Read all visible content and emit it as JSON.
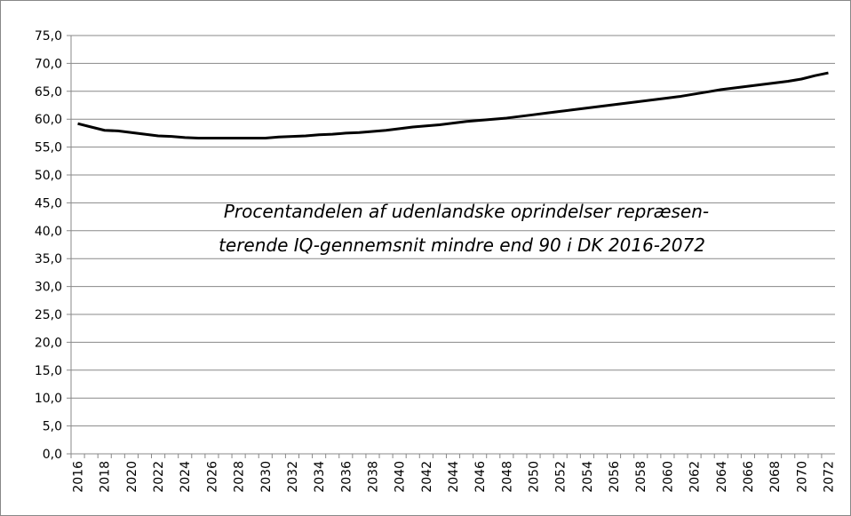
{
  "chart_data": {
    "type": "line",
    "annotation": [
      "Procentandelen af udenlandske oprindelser repræsen-",
      "terende IQ-gennemsnit mindre end 90 i DK 2016-2072"
    ],
    "categories": [
      "2016",
      null,
      "2018",
      null,
      "2020",
      null,
      "2022",
      null,
      "2024",
      null,
      "2026",
      null,
      "2028",
      null,
      "2030",
      null,
      "2032",
      null,
      "2034",
      null,
      "2036",
      null,
      "2038",
      null,
      "2040",
      null,
      "2042",
      null,
      "2044",
      null,
      "2046",
      null,
      "2048",
      null,
      "2050",
      null,
      "2052",
      null,
      "2054",
      null,
      "2056",
      null,
      "2058",
      null,
      "2060",
      null,
      "2062",
      null,
      "2064",
      null,
      "2066",
      null,
      "2068",
      null,
      "2070",
      null,
      "2072"
    ],
    "series": [
      {
        "color": "#000000",
        "values": [
          59.2,
          58.6,
          58.0,
          57.9,
          57.6,
          57.3,
          57.0,
          56.9,
          56.7,
          56.6,
          56.6,
          56.6,
          56.6,
          56.6,
          56.6,
          56.8,
          56.9,
          57.0,
          57.2,
          57.3,
          57.5,
          57.6,
          57.8,
          58.0,
          58.3,
          58.6,
          58.8,
          59.0,
          59.3,
          59.6,
          59.8,
          60.0,
          60.2,
          60.5,
          60.8,
          61.1,
          61.4,
          61.7,
          62.0,
          62.3,
          62.6,
          62.9,
          63.2,
          63.5,
          63.8,
          64.1,
          64.5,
          64.9,
          65.3,
          65.6,
          65.9,
          66.2,
          66.5,
          66.8,
          67.2,
          67.8,
          68.3
        ]
      }
    ],
    "ylim": [
      0,
      75
    ],
    "yticks": [
      {
        "value": 0,
        "label": "0,0"
      },
      {
        "value": 5,
        "label": "5,0"
      },
      {
        "value": 10,
        "label": "10,0"
      },
      {
        "value": 15,
        "label": "15,0"
      },
      {
        "value": 20,
        "label": "20,0"
      },
      {
        "value": 25,
        "label": "25,0"
      },
      {
        "value": 30,
        "label": "30,0"
      },
      {
        "value": 35,
        "label": "35,0"
      },
      {
        "value": 40,
        "label": "40,0"
      },
      {
        "value": 45,
        "label": "45,0"
      },
      {
        "value": 50,
        "label": "50,0"
      },
      {
        "value": 55,
        "label": "55,0"
      },
      {
        "value": 60,
        "label": "60,0"
      },
      {
        "value": 65,
        "label": "65,0"
      },
      {
        "value": 70,
        "label": "70,0"
      },
      {
        "value": 75,
        "label": "75,0"
      }
    ],
    "grid": true
  }
}
